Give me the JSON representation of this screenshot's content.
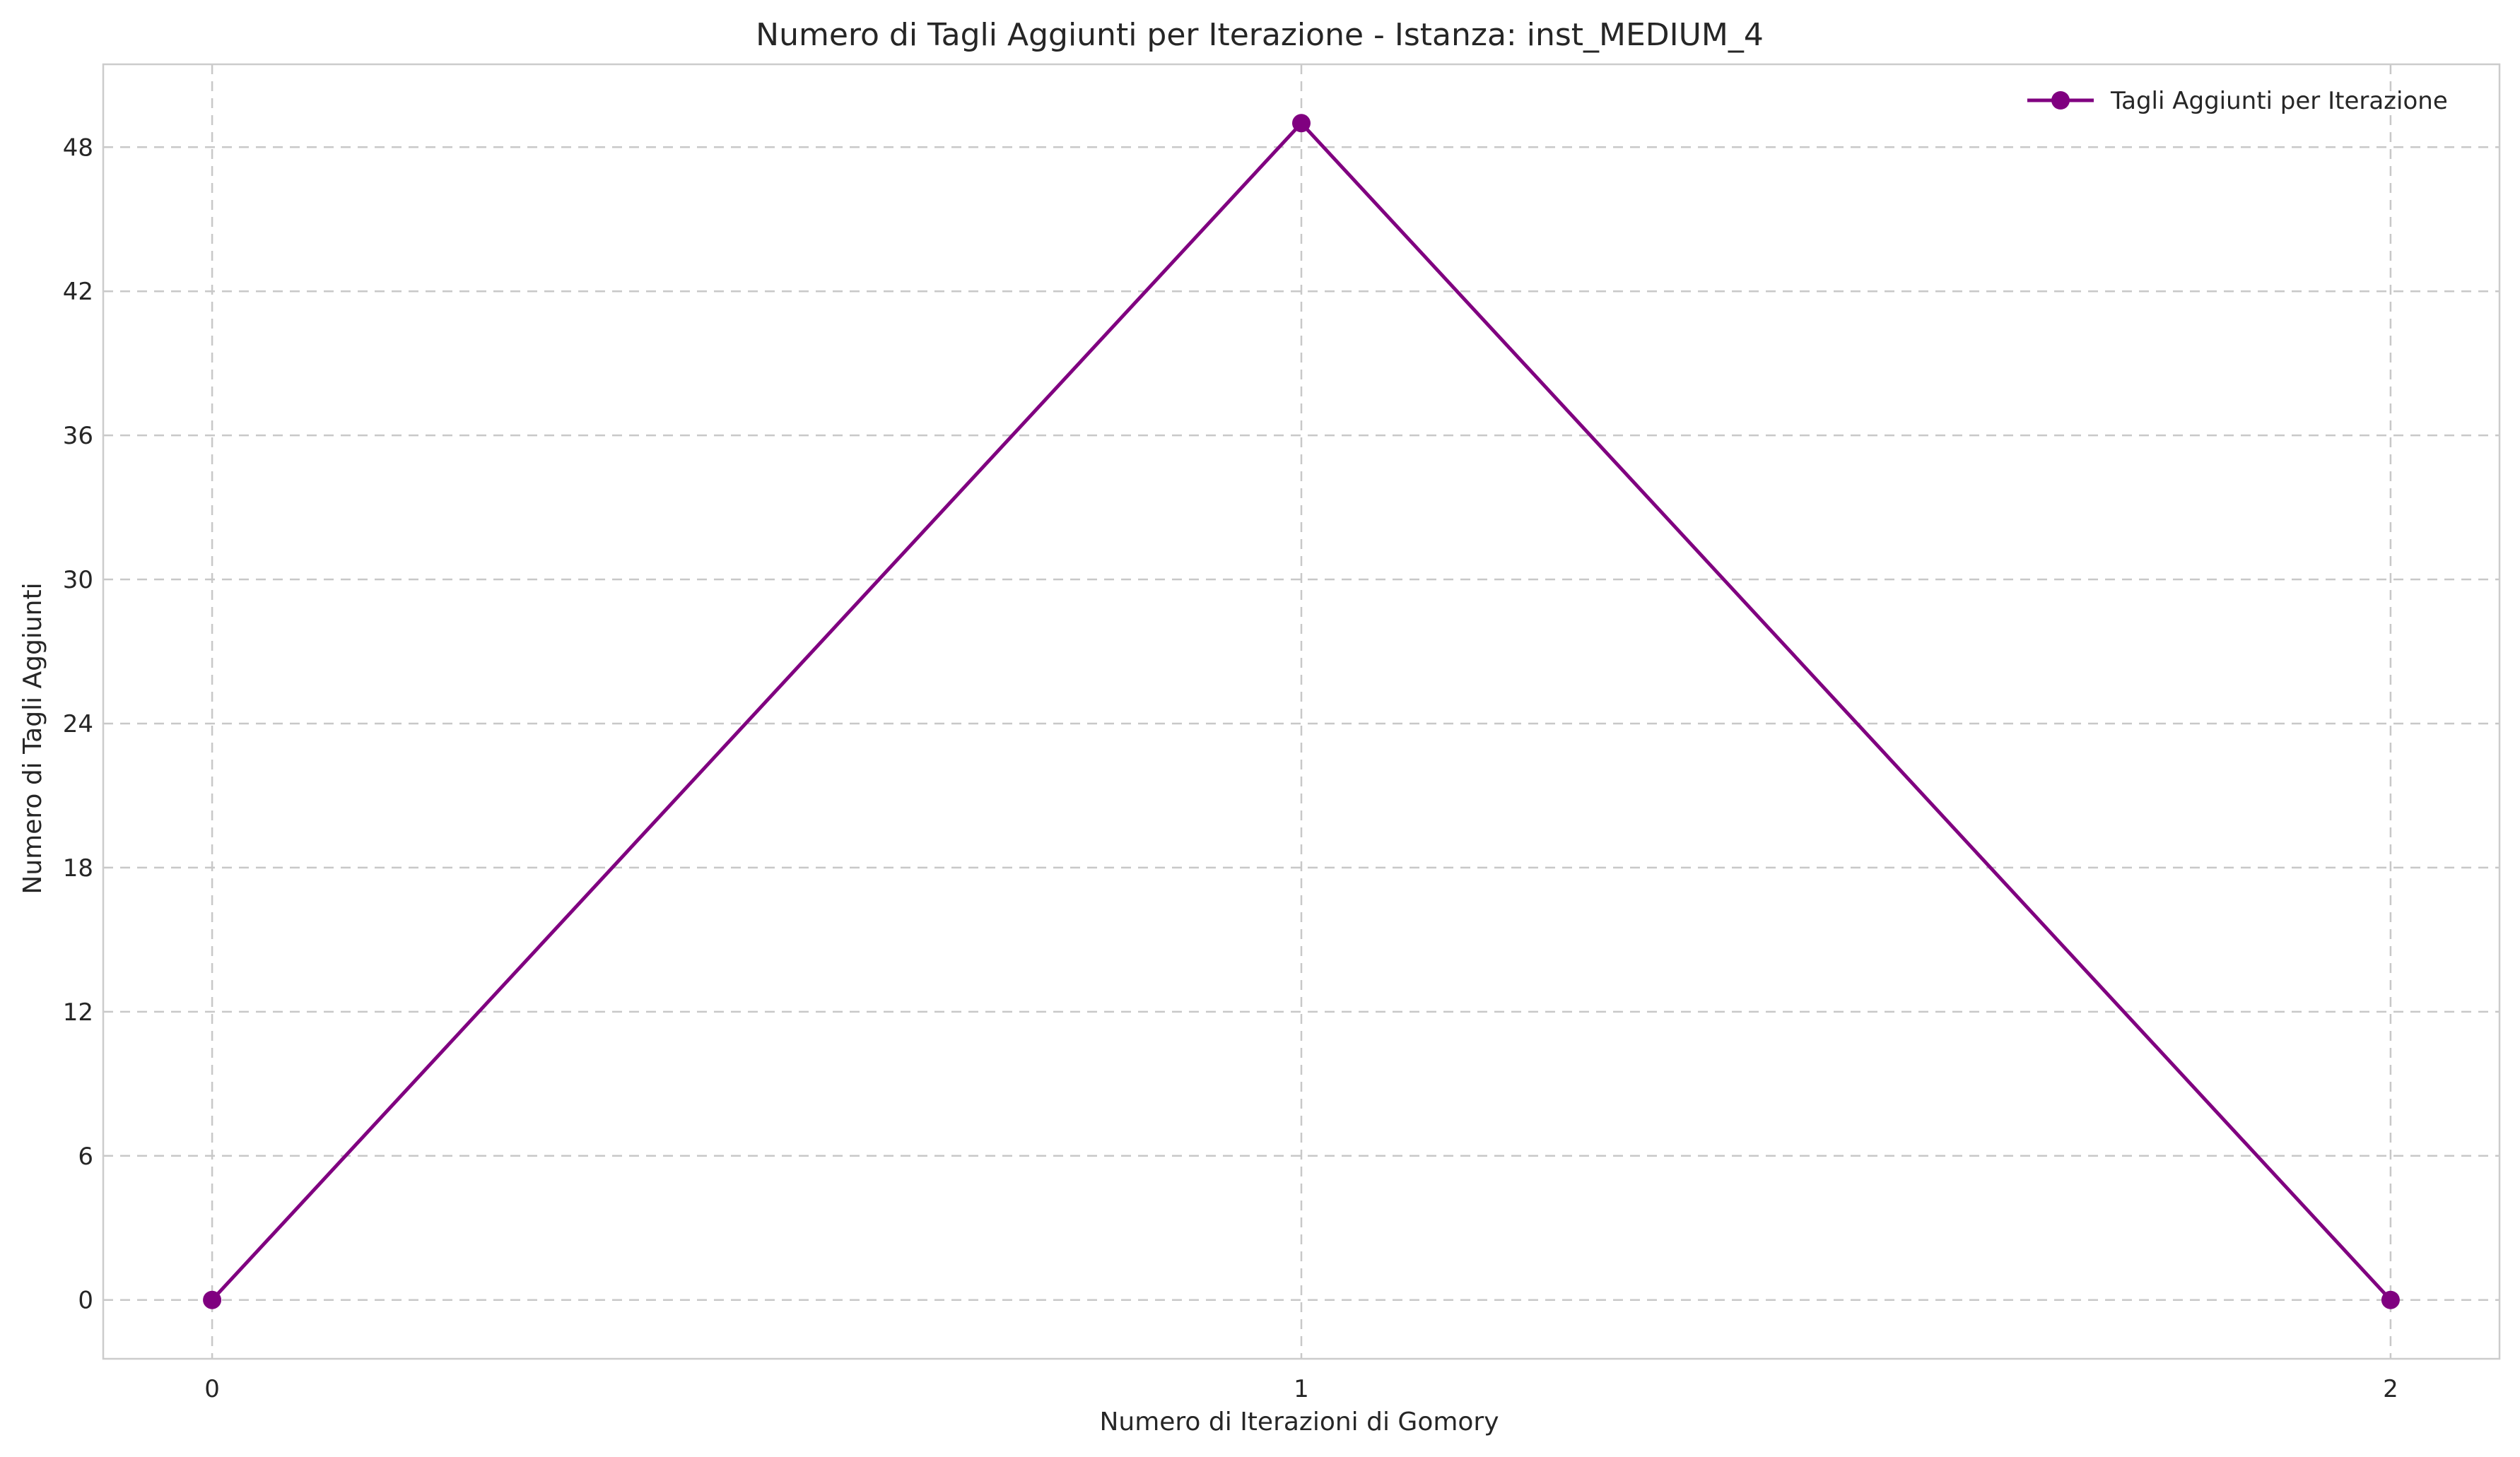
{
  "chart_data": {
    "type": "line",
    "title": "Numero di Tagli Aggiunti per Iterazione - Istanza: inst_MEDIUM_4",
    "xlabel": "Numero di Iterazioni di Gomory",
    "ylabel": "Numero di Tagli Aggiunti",
    "x": [
      0,
      1,
      2
    ],
    "series": [
      {
        "name": "Tagli Aggiunti per Iterazione",
        "values": [
          0,
          49,
          0
        ],
        "color": "#800080"
      }
    ],
    "xticks": [
      0,
      1,
      2
    ],
    "yticks": [
      0,
      6,
      12,
      18,
      24,
      30,
      36,
      42,
      48
    ],
    "xlim": [
      -0.1,
      2.1
    ],
    "ylim": [
      -2.45,
      51.45
    ],
    "grid": true,
    "grid_style": "dashed",
    "legend_position": "top-right"
  }
}
